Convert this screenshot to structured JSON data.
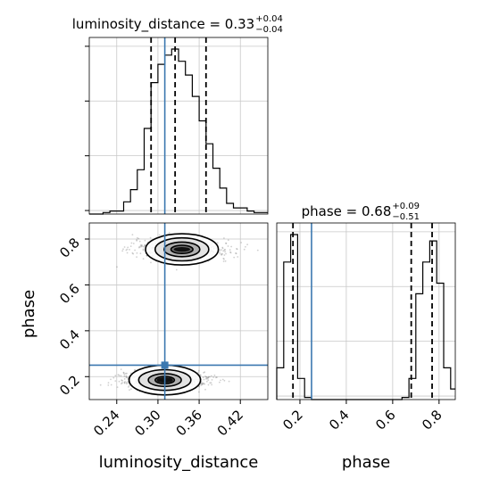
{
  "chart_data": {
    "type": "corner",
    "parameters": [
      "luminosity_distance",
      "phase"
    ],
    "truths": {
      "luminosity_distance": 0.31,
      "phase": 0.25
    },
    "colors": {
      "hist": "#000000",
      "truth": "#3b78b0",
      "quantile": "#000000",
      "samples": "#555555"
    },
    "grid": true,
    "panels": {
      "luminosity_distance_hist": {
        "title_main": "luminosity_distance = 0.33",
        "title_sup": "+0.04",
        "title_sub": "−0.04",
        "xlim": [
          0.2,
          0.46
        ],
        "quantiles": [
          0.29,
          0.325,
          0.37
        ],
        "bin_edges": [
          0.2,
          0.21,
          0.22,
          0.23,
          0.24,
          0.25,
          0.26,
          0.27,
          0.28,
          0.29,
          0.3,
          0.31,
          0.32,
          0.33,
          0.34,
          0.35,
          0.36,
          0.37,
          0.38,
          0.39,
          0.4,
          0.41,
          0.42,
          0.43,
          0.44,
          0.45,
          0.46
        ],
        "counts": [
          0,
          0,
          1,
          2,
          2,
          8,
          16,
          29,
          56,
          86,
          98,
          104,
          108,
          100,
          91,
          77,
          61,
          46,
          30,
          17,
          7,
          4,
          4,
          2,
          1,
          1
        ]
      },
      "phase_hist": {
        "title_main": "phase = 0.68",
        "title_sup": "+0.09",
        "title_sub": "−0.51",
        "xlim": [
          0.1,
          0.87
        ],
        "quantiles": [
          0.17,
          0.68,
          0.77
        ],
        "bin_edges": [
          0.1,
          0.13,
          0.16,
          0.19,
          0.22,
          0.25,
          0.28,
          0.31,
          0.34,
          0.37,
          0.4,
          0.43,
          0.46,
          0.49,
          0.52,
          0.55,
          0.58,
          0.61,
          0.64,
          0.67,
          0.7,
          0.73,
          0.76,
          0.79,
          0.82,
          0.85,
          0.87
        ],
        "counts": [
          15,
          65,
          78,
          10,
          1,
          0,
          0,
          0,
          0,
          0,
          0,
          0,
          0,
          0,
          0,
          0,
          0,
          0,
          1,
          10,
          50,
          65,
          75,
          55,
          15,
          5
        ]
      },
      "joint": {
        "xlim": [
          0.2,
          0.46
        ],
        "ylim": [
          0.1,
          0.87
        ],
        "xlabel": "luminosity_distance",
        "ylabel": "phase",
        "xticks": [
          "0.24",
          "0.30",
          "0.36",
          "0.42"
        ],
        "yticks": [
          "0.2",
          "0.4",
          "0.6",
          "0.8"
        ],
        "phase_xticks": [
          "0.2",
          "0.4",
          "0.6",
          "0.8"
        ],
        "phase_xlabel": "phase",
        "modes": [
          {
            "center": [
              0.335,
              0.755
            ],
            "spread": [
              0.035,
              0.04
            ],
            "contours": [
              [
                0.053,
                0.068
              ],
              [
                0.039,
                0.05
              ],
              [
                0.026,
                0.032
              ],
              [
                0.016,
                0.018
              ]
            ],
            "core": [
              0.012,
              0.01
            ]
          },
          {
            "center": [
              0.31,
              0.185
            ],
            "spread": [
              0.032,
              0.035
            ],
            "contours": [
              [
                0.052,
                0.065
              ],
              [
                0.038,
                0.045
              ],
              [
                0.024,
                0.028
              ],
              [
                0.014,
                0.016
              ]
            ],
            "core": [
              0.012,
              0.012
            ]
          }
        ]
      }
    }
  }
}
